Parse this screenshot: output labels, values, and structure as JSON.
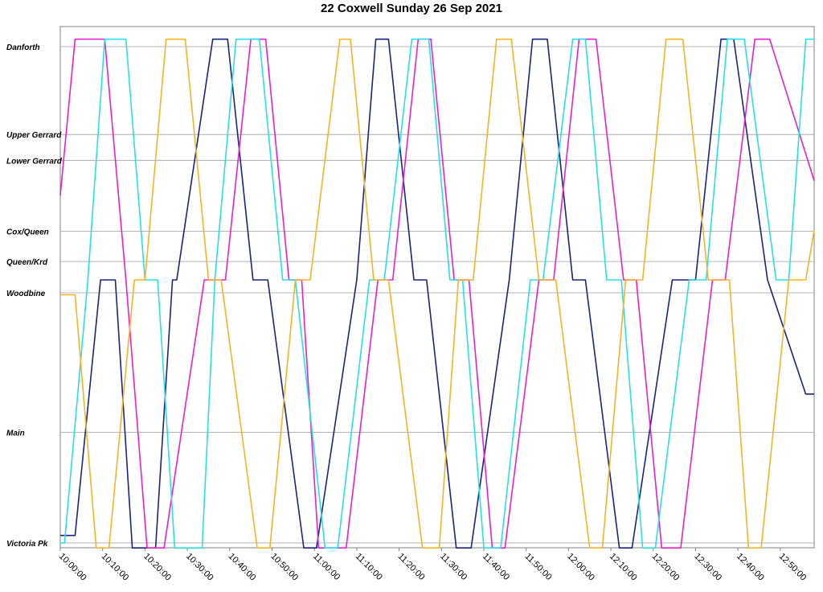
{
  "chart_data": {
    "type": "line",
    "title": "22 Coxwell Sunday 26 Sep 2021",
    "xlabel": "",
    "ylabel": "",
    "x_range": [
      "10:00:00",
      "12:58:00"
    ],
    "x_ticks": [
      "10:00:00",
      "10:10:00",
      "10:20:00",
      "10:30:00",
      "10:40:00",
      "10:50:00",
      "11:00:00",
      "11:10:00",
      "11:20:00",
      "11:30:00",
      "11:40:00",
      "11:50:00",
      "12:00:00",
      "12:10:00",
      "12:20:00",
      "12:30:00",
      "12:40:00",
      "12:50:00"
    ],
    "stops": [
      {
        "name": "Danforth",
        "pos": 0.0
      },
      {
        "name": "Upper Gerrard",
        "pos": 0.177
      },
      {
        "name": "Lower Gerrard",
        "pos": 0.229
      },
      {
        "name": "Cox/Queen",
        "pos": 0.372
      },
      {
        "name": "Queen/Krd",
        "pos": 0.433
      },
      {
        "name": "Woodbine",
        "pos": 0.496
      },
      {
        "name": "Main",
        "pos": 0.777
      },
      {
        "name": "Victoria Pk",
        "pos": 1.0
      }
    ],
    "grid": true,
    "legend": "none",
    "series": [
      {
        "color": "#1a237e",
        "points": [
          [
            "10:00:00",
            0.985
          ],
          [
            "10:03:30",
            0.985
          ],
          [
            "10:09:30",
            0.47
          ],
          [
            "10:13:00",
            0.47
          ],
          [
            "10:17:00",
            1.01
          ],
          [
            "10:22:30",
            1.01
          ],
          [
            "10:26:30",
            0.47
          ],
          [
            "10:27:30",
            0.47
          ],
          [
            "10:36:00",
            -0.015
          ],
          [
            "10:39:30",
            -0.015
          ],
          [
            "10:45:30",
            0.47
          ],
          [
            "10:49:00",
            0.47
          ],
          [
            "10:57:30",
            1.01
          ],
          [
            "11:00:30",
            1.01
          ],
          [
            "11:10:00",
            0.47
          ],
          [
            "11:14:30",
            -0.015
          ],
          [
            "11:17:30",
            -0.015
          ],
          [
            "11:23:30",
            0.47
          ],
          [
            "11:26:30",
            0.47
          ],
          [
            "11:33:30",
            1.01
          ],
          [
            "11:37:00",
            1.01
          ],
          [
            "11:46:00",
            0.47
          ],
          [
            "11:51:30",
            -0.015
          ],
          [
            "11:55:00",
            -0.015
          ],
          [
            "12:01:00",
            0.47
          ],
          [
            "12:04:00",
            0.47
          ],
          [
            "12:12:00",
            1.01
          ],
          [
            "12:15:00",
            1.01
          ],
          [
            "12:24:30",
            0.47
          ],
          [
            "12:30:00",
            0.47
          ],
          [
            "12:36:00",
            -0.015
          ],
          [
            "12:39:00",
            -0.015
          ],
          [
            "12:47:00",
            0.47
          ],
          [
            "12:56:00",
            0.7
          ],
          [
            "12:58:00",
            0.7
          ]
        ]
      },
      {
        "color": "#e61fd1",
        "points": [
          [
            "10:00:00",
            0.3
          ],
          [
            "10:03:30",
            -0.015
          ],
          [
            "10:10:30",
            -0.015
          ],
          [
            "10:15:30",
            0.47
          ],
          [
            "10:20:30",
            1.01
          ],
          [
            "10:24:30",
            1.01
          ],
          [
            "10:34:00",
            0.47
          ],
          [
            "10:39:00",
            0.47
          ],
          [
            "10:45:00",
            -0.015
          ],
          [
            "10:48:30",
            -0.015
          ],
          [
            "10:54:00",
            0.47
          ],
          [
            "10:57:00",
            0.47
          ],
          [
            "11:01:00",
            1.01
          ],
          [
            "11:07:30",
            1.01
          ],
          [
            "11:15:00",
            0.47
          ],
          [
            "11:18:30",
            0.47
          ],
          [
            "11:24:30",
            -0.015
          ],
          [
            "11:27:30",
            -0.015
          ],
          [
            "11:33:00",
            0.47
          ],
          [
            "11:36:30",
            0.47
          ],
          [
            "11:42:00",
            1.01
          ],
          [
            "11:45:00",
            1.01
          ],
          [
            "11:53:00",
            0.47
          ],
          [
            "11:56:30",
            0.47
          ],
          [
            "12:02:30",
            -0.015
          ],
          [
            "12:06:30",
            -0.015
          ],
          [
            "12:13:00",
            0.47
          ],
          [
            "12:16:00",
            0.47
          ],
          [
            "12:22:00",
            1.01
          ],
          [
            "12:26:30",
            1.01
          ],
          [
            "12:34:00",
            0.47
          ],
          [
            "12:37:00",
            0.47
          ],
          [
            "12:44:00",
            -0.015
          ],
          [
            "12:47:30",
            -0.015
          ],
          [
            "12:58:00",
            0.27
          ]
        ]
      },
      {
        "color": "#26e0e6",
        "points": [
          [
            "10:00:00",
            1.0
          ],
          [
            "10:01:00",
            1.0
          ],
          [
            "10:06:30",
            0.47
          ],
          [
            "10:10:30",
            -0.015
          ],
          [
            "10:15:30",
            -0.015
          ],
          [
            "10:20:00",
            0.47
          ],
          [
            "10:23:00",
            0.47
          ],
          [
            "10:27:00",
            1.01
          ],
          [
            "10:33:30",
            1.01
          ],
          [
            "10:36:30",
            0.47
          ],
          [
            "10:41:30",
            -0.015
          ],
          [
            "10:47:00",
            -0.015
          ],
          [
            "10:52:30",
            0.47
          ],
          [
            "10:55:30",
            0.47
          ],
          [
            "11:02:30",
            1.01
          ],
          [
            "11:05:30",
            1.01
          ],
          [
            "11:13:00",
            0.47
          ],
          [
            "11:16:30",
            0.47
          ],
          [
            "11:23:00",
            -0.015
          ],
          [
            "11:27:00",
            -0.015
          ],
          [
            "11:32:00",
            0.47
          ],
          [
            "11:35:00",
            0.47
          ],
          [
            "11:40:00",
            1.01
          ],
          [
            "11:44:00",
            1.01
          ],
          [
            "11:51:00",
            0.47
          ],
          [
            "11:54:00",
            0.47
          ],
          [
            "12:01:00",
            -0.015
          ],
          [
            "12:04:00",
            -0.015
          ],
          [
            "12:09:00",
            0.47
          ],
          [
            "12:12:30",
            0.47
          ],
          [
            "12:17:30",
            1.01
          ],
          [
            "12:20:30",
            1.01
          ],
          [
            "12:28:30",
            0.47
          ],
          [
            "12:32:30",
            0.47
          ],
          [
            "12:37:30",
            -0.015
          ],
          [
            "12:41:30",
            -0.015
          ],
          [
            "12:49:00",
            0.47
          ],
          [
            "12:52:00",
            0.47
          ],
          [
            "12:56:00",
            -0.015
          ],
          [
            "12:58:00",
            -0.015
          ]
        ]
      },
      {
        "color": "#f5b325",
        "points": [
          [
            "10:00:00",
            0.5
          ],
          [
            "10:03:30",
            0.5
          ],
          [
            "10:08:30",
            1.01
          ],
          [
            "10:11:30",
            1.01
          ],
          [
            "10:17:30",
            0.47
          ],
          [
            "10:20:00",
            0.47
          ],
          [
            "10:25:00",
            -0.015
          ],
          [
            "10:29:30",
            -0.015
          ],
          [
            "10:35:00",
            0.47
          ],
          [
            "10:38:00",
            0.47
          ],
          [
            "10:46:30",
            1.01
          ],
          [
            "10:49:30",
            1.01
          ],
          [
            "10:55:30",
            0.47
          ],
          [
            "10:59:00",
            0.47
          ],
          [
            "11:06:00",
            -0.015
          ],
          [
            "11:08:30",
            -0.015
          ],
          [
            "11:14:00",
            0.47
          ],
          [
            "11:17:30",
            0.47
          ],
          [
            "11:25:30",
            1.01
          ],
          [
            "11:29:30",
            1.01
          ],
          [
            "11:34:00",
            0.47
          ],
          [
            "11:37:30",
            0.47
          ],
          [
            "11:43:00",
            -0.015
          ],
          [
            "11:46:30",
            -0.015
          ],
          [
            "11:53:00",
            0.47
          ],
          [
            "11:57:00",
            0.47
          ],
          [
            "12:05:00",
            1.01
          ],
          [
            "12:08:00",
            1.01
          ],
          [
            "12:13:30",
            0.47
          ],
          [
            "12:17:30",
            0.47
          ],
          [
            "12:23:00",
            -0.015
          ],
          [
            "12:27:00",
            -0.015
          ],
          [
            "12:33:00",
            0.47
          ],
          [
            "12:38:00",
            0.47
          ],
          [
            "12:42:30",
            1.01
          ],
          [
            "12:45:30",
            1.01
          ],
          [
            "12:52:00",
            0.47
          ],
          [
            "12:56:00",
            0.47
          ],
          [
            "12:58:00",
            0.37
          ]
        ]
      }
    ]
  }
}
